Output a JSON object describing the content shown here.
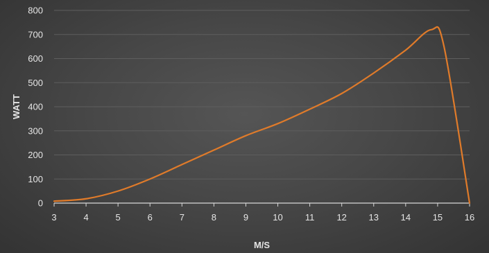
{
  "chart_data": {
    "type": "line",
    "title": "",
    "xlabel": "M/S",
    "ylabel": "WATT",
    "xlim": [
      3,
      16
    ],
    "ylim": [
      0,
      800
    ],
    "x_ticks": [
      "3",
      "4",
      "5",
      "6",
      "7",
      "8",
      "9",
      "10",
      "11",
      "12",
      "13",
      "14",
      "15",
      "16"
    ],
    "y_ticks": [
      "0",
      "100",
      "200",
      "300",
      "400",
      "500",
      "600",
      "700",
      "800"
    ],
    "grid": true,
    "legend": "none",
    "series": [
      {
        "color": "#e07b2a",
        "x": [
          3,
          4,
          5,
          6,
          7,
          8,
          9,
          10,
          11,
          12,
          13,
          14,
          14.8,
          15.2,
          16
        ],
        "y": [
          8,
          18,
          50,
          100,
          160,
          220,
          280,
          330,
          390,
          455,
          540,
          635,
          720,
          650,
          0
        ]
      }
    ],
    "colors": {
      "background": "#474747",
      "grid": "#5e5e5e",
      "axis": "#d9d9d9",
      "text": "#e6e6e6"
    }
  }
}
